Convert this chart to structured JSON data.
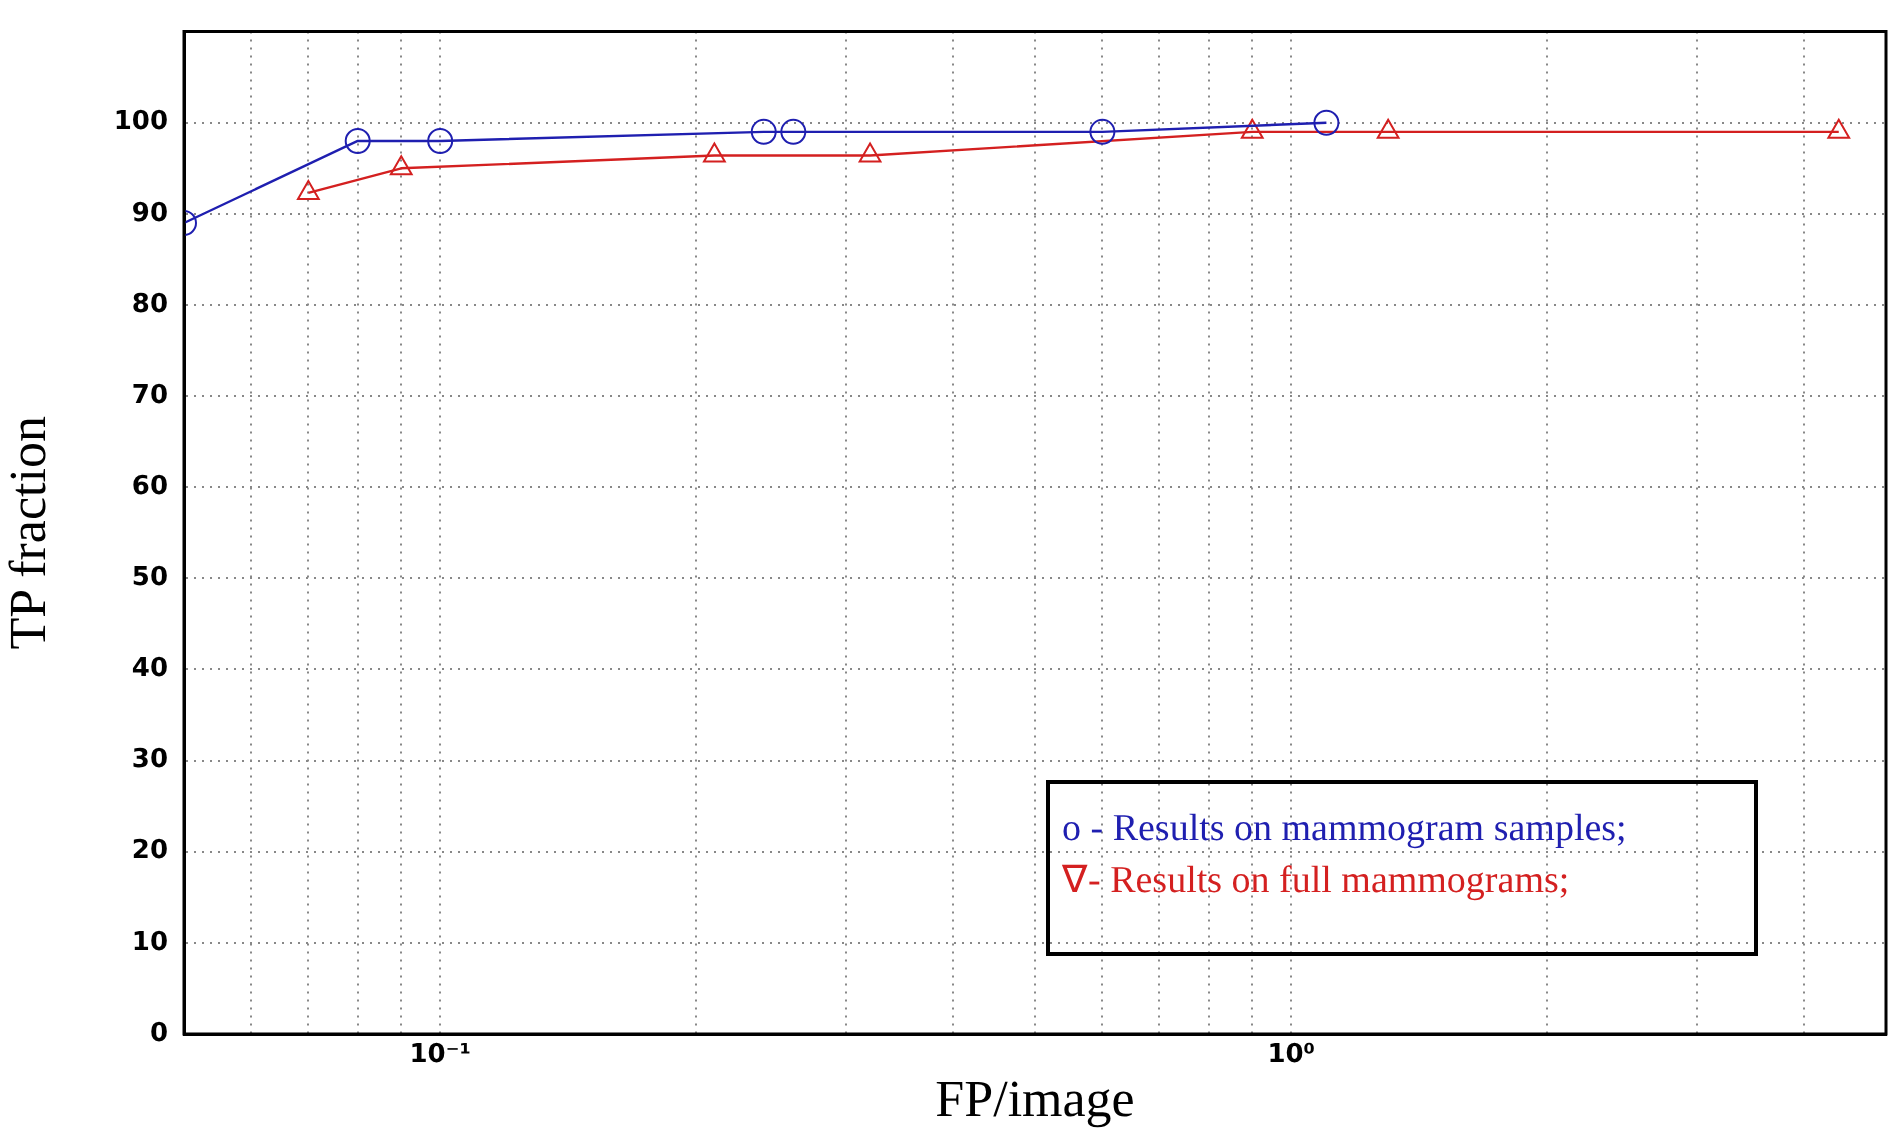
{
  "chart_data": {
    "type": "line",
    "xlabel": "FP/image",
    "ylabel": "TP fraction",
    "log": "x",
    "grid": true,
    "legend": "bottom right",
    "xlim": [
      0.05,
      5
    ],
    "ylim": [
      0,
      110
    ],
    "xticks": [
      {
        "value": 0.06,
        "label": null
      },
      {
        "value": 0.07,
        "label": null
      },
      {
        "value": 0.08,
        "label": null
      },
      {
        "value": 0.09,
        "label": null
      },
      {
        "value": 0.1,
        "label": "10⁻¹"
      },
      {
        "value": 0.2,
        "label": null
      },
      {
        "value": 0.3,
        "label": null
      },
      {
        "value": 0.4,
        "label": null
      },
      {
        "value": 0.5,
        "label": null
      },
      {
        "value": 0.6,
        "label": null
      },
      {
        "value": 0.7,
        "label": null
      },
      {
        "value": 0.8,
        "label": null
      },
      {
        "value": 0.9,
        "label": null
      },
      {
        "value": 1,
        "label": "10⁰"
      },
      {
        "value": 2,
        "label": null
      },
      {
        "value": 3,
        "label": null
      },
      {
        "value": 4,
        "label": null
      }
    ],
    "yticks": [
      0,
      10,
      20,
      30,
      40,
      50,
      60,
      70,
      80,
      90,
      100
    ],
    "series": [
      {
        "name": "o - Results on mammogram samples;",
        "color": "#1f1fb0",
        "marker": "circle",
        "x": [
          0.05,
          0.08,
          0.1,
          0.24,
          0.26,
          0.6,
          1.1
        ],
        "values": [
          89,
          98,
          98,
          99,
          99,
          99,
          100
        ]
      },
      {
        "name": "∇- Results on full mammograms;",
        "color": "#d42020",
        "marker": "triangle",
        "x": [
          0.07,
          0.09,
          0.21,
          0.32,
          0.9,
          1.3,
          4.4
        ],
        "values": [
          92.3,
          95,
          96.4,
          96.4,
          99,
          99,
          99
        ]
      }
    ]
  }
}
